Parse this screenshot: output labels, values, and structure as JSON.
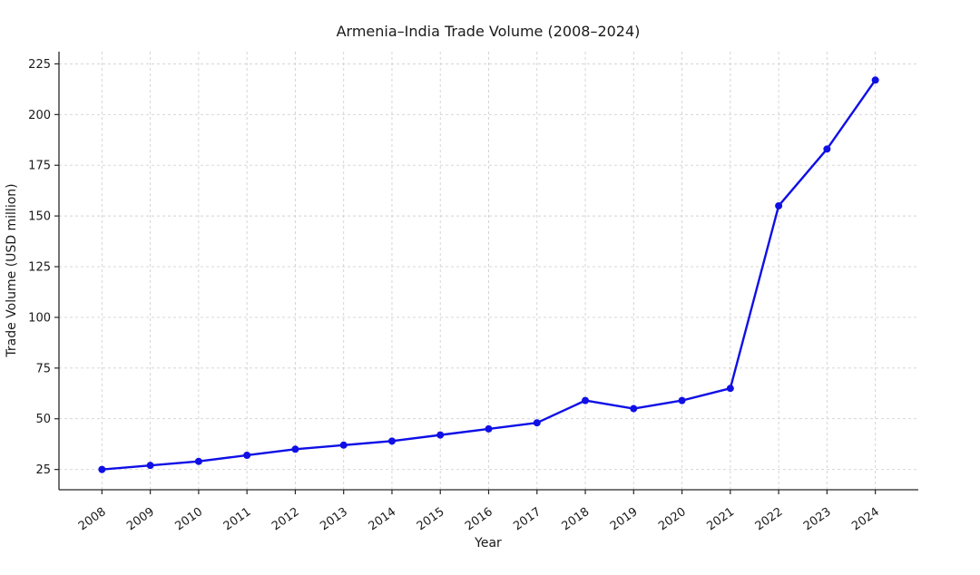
{
  "chart_data": {
    "type": "line",
    "title": "Armenia–India Trade Volume (2008–2024)",
    "xlabel": "Year",
    "ylabel": "Trade Volume (USD million)",
    "categories": [
      "2008",
      "2009",
      "2010",
      "2011",
      "2012",
      "2013",
      "2014",
      "2015",
      "2016",
      "2017",
      "2018",
      "2019",
      "2020",
      "2021",
      "2022",
      "2023",
      "2024"
    ],
    "values": [
      25,
      27,
      29,
      32,
      35,
      37,
      39,
      42,
      45,
      48,
      59,
      55,
      59,
      65,
      155,
      183,
      217
    ],
    "yticks": [
      25,
      50,
      75,
      100,
      125,
      150,
      175,
      200,
      225
    ],
    "ylim": [
      15,
      231
    ],
    "grid": true,
    "legend": "none",
    "colors": {
      "line": "#0f0fe6",
      "marker": "#0f0fe6",
      "grid": "#cccccc",
      "axis": "#262626",
      "text": "#1a1a1a",
      "background": "#ffffff"
    }
  }
}
